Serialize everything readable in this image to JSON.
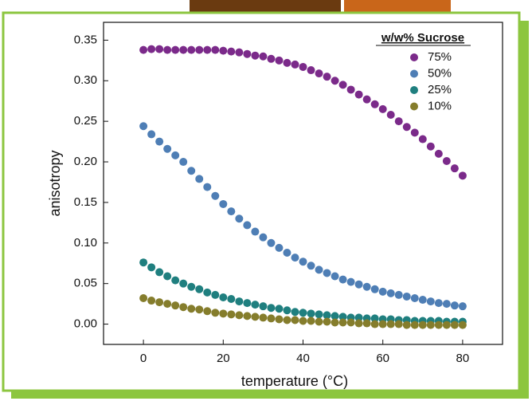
{
  "chart_data": {
    "type": "scatter",
    "xlabel": "temperature (°C)",
    "ylabel": "anisotropy",
    "legend_title": "w/w% Sucrose",
    "x": [
      0,
      2,
      4,
      6,
      8,
      10,
      12,
      14,
      16,
      18,
      20,
      22,
      24,
      26,
      28,
      30,
      32,
      34,
      36,
      38,
      40,
      42,
      44,
      46,
      48,
      50,
      52,
      54,
      56,
      58,
      60,
      62,
      64,
      66,
      68,
      70,
      72,
      74,
      76,
      78,
      80
    ],
    "series": [
      {
        "name": "75%",
        "color": "#7b2a8a",
        "values": [
          0.338,
          0.339,
          0.339,
          0.338,
          0.338,
          0.338,
          0.338,
          0.338,
          0.338,
          0.338,
          0.337,
          0.336,
          0.335,
          0.333,
          0.331,
          0.33,
          0.327,
          0.325,
          0.322,
          0.32,
          0.317,
          0.313,
          0.309,
          0.305,
          0.3,
          0.295,
          0.289,
          0.283,
          0.277,
          0.271,
          0.265,
          0.258,
          0.25,
          0.243,
          0.236,
          0.228,
          0.219,
          0.21,
          0.201,
          0.192,
          0.183
        ]
      },
      {
        "name": "50%",
        "color": "#4e7eb5",
        "values": [
          0.244,
          0.234,
          0.225,
          0.216,
          0.208,
          0.2,
          0.189,
          0.179,
          0.169,
          0.158,
          0.148,
          0.139,
          0.13,
          0.122,
          0.114,
          0.107,
          0.1,
          0.094,
          0.088,
          0.082,
          0.077,
          0.072,
          0.067,
          0.063,
          0.059,
          0.055,
          0.052,
          0.049,
          0.046,
          0.043,
          0.04,
          0.038,
          0.036,
          0.034,
          0.032,
          0.03,
          0.028,
          0.026,
          0.025,
          0.023,
          0.022
        ]
      },
      {
        "name": "25%",
        "color": "#1f7f7f",
        "values": [
          0.076,
          0.07,
          0.064,
          0.059,
          0.054,
          0.05,
          0.046,
          0.043,
          0.039,
          0.036,
          0.033,
          0.031,
          0.028,
          0.026,
          0.024,
          0.022,
          0.02,
          0.019,
          0.017,
          0.015,
          0.014,
          0.013,
          0.012,
          0.011,
          0.01,
          0.009,
          0.008,
          0.008,
          0.007,
          0.007,
          0.006,
          0.006,
          0.005,
          0.005,
          0.004,
          0.004,
          0.004,
          0.004,
          0.003,
          0.003,
          0.003
        ]
      },
      {
        "name": "10%",
        "color": "#857d2c",
        "values": [
          0.032,
          0.029,
          0.027,
          0.025,
          0.023,
          0.021,
          0.019,
          0.018,
          0.016,
          0.014,
          0.013,
          0.012,
          0.011,
          0.01,
          0.009,
          0.008,
          0.007,
          0.006,
          0.005,
          0.005,
          0.004,
          0.004,
          0.003,
          0.003,
          0.002,
          0.002,
          0.002,
          0.001,
          0.001,
          0.0,
          0.0,
          0.0,
          0.0,
          -0.001,
          -0.001,
          -0.001,
          -0.001,
          -0.001,
          -0.001,
          -0.001,
          -0.001
        ]
      }
    ],
    "xlim": [
      -10,
      90
    ],
    "ylim": [
      -0.025,
      0.372
    ],
    "xticks": [
      0,
      20,
      40,
      60,
      80
    ],
    "yticks": [
      {
        "value": 0,
        "label": "0.00"
      },
      {
        "value": 0.05,
        "label": "0.05"
      },
      {
        "value": 0.1,
        "label": "0.10"
      },
      {
        "value": 0.15,
        "label": "0.15"
      },
      {
        "value": 0.2,
        "label": "0.20"
      },
      {
        "value": 0.25,
        "label": "0.25"
      },
      {
        "value": 0.3,
        "label": "0.30"
      },
      {
        "value": 0.35,
        "label": "0.35"
      }
    ],
    "legend": "upper right"
  }
}
